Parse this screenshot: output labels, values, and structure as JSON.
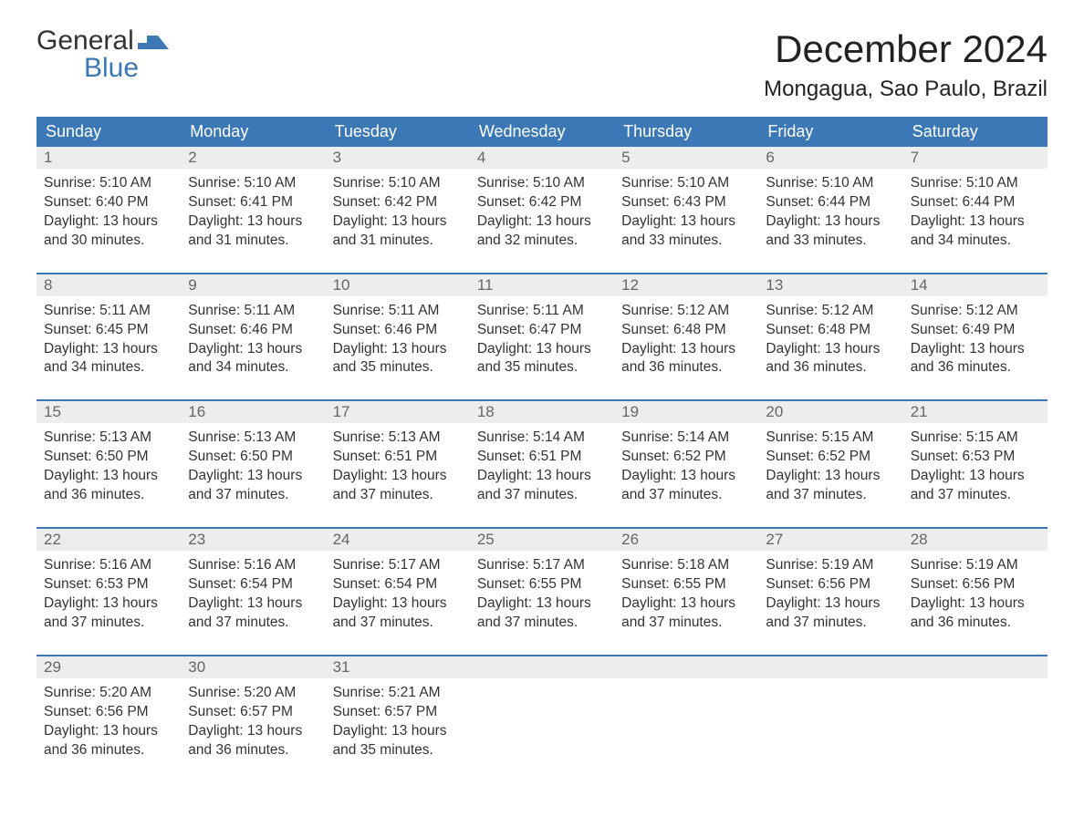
{
  "logo": {
    "word1": "General",
    "word2": "Blue",
    "brand_color": "#3b78b5",
    "text_color": "#333333"
  },
  "header": {
    "month_title": "December 2024",
    "location": "Mongagua, Sao Paulo, Brazil"
  },
  "styling": {
    "header_row_bg": "#3b78b5",
    "header_row_text": "#ffffff",
    "daynum_bg": "#ededed",
    "daynum_text": "#666666",
    "body_text": "#333333",
    "row_divider": "#3b78b5",
    "page_bg": "#ffffff",
    "day_header_fontsize": 18,
    "month_title_fontsize": 42,
    "location_fontsize": 24,
    "body_fontsize": 15.5
  },
  "calendar": {
    "day_headers": [
      "Sunday",
      "Monday",
      "Tuesday",
      "Wednesday",
      "Thursday",
      "Friday",
      "Saturday"
    ],
    "weeks": [
      [
        {
          "num": "1",
          "sunrise": "Sunrise: 5:10 AM",
          "sunset": "Sunset: 6:40 PM",
          "day1": "Daylight: 13 hours",
          "day2": "and 30 minutes."
        },
        {
          "num": "2",
          "sunrise": "Sunrise: 5:10 AM",
          "sunset": "Sunset: 6:41 PM",
          "day1": "Daylight: 13 hours",
          "day2": "and 31 minutes."
        },
        {
          "num": "3",
          "sunrise": "Sunrise: 5:10 AM",
          "sunset": "Sunset: 6:42 PM",
          "day1": "Daylight: 13 hours",
          "day2": "and 31 minutes."
        },
        {
          "num": "4",
          "sunrise": "Sunrise: 5:10 AM",
          "sunset": "Sunset: 6:42 PM",
          "day1": "Daylight: 13 hours",
          "day2": "and 32 minutes."
        },
        {
          "num": "5",
          "sunrise": "Sunrise: 5:10 AM",
          "sunset": "Sunset: 6:43 PM",
          "day1": "Daylight: 13 hours",
          "day2": "and 33 minutes."
        },
        {
          "num": "6",
          "sunrise": "Sunrise: 5:10 AM",
          "sunset": "Sunset: 6:44 PM",
          "day1": "Daylight: 13 hours",
          "day2": "and 33 minutes."
        },
        {
          "num": "7",
          "sunrise": "Sunrise: 5:10 AM",
          "sunset": "Sunset: 6:44 PM",
          "day1": "Daylight: 13 hours",
          "day2": "and 34 minutes."
        }
      ],
      [
        {
          "num": "8",
          "sunrise": "Sunrise: 5:11 AM",
          "sunset": "Sunset: 6:45 PM",
          "day1": "Daylight: 13 hours",
          "day2": "and 34 minutes."
        },
        {
          "num": "9",
          "sunrise": "Sunrise: 5:11 AM",
          "sunset": "Sunset: 6:46 PM",
          "day1": "Daylight: 13 hours",
          "day2": "and 34 minutes."
        },
        {
          "num": "10",
          "sunrise": "Sunrise: 5:11 AM",
          "sunset": "Sunset: 6:46 PM",
          "day1": "Daylight: 13 hours",
          "day2": "and 35 minutes."
        },
        {
          "num": "11",
          "sunrise": "Sunrise: 5:11 AM",
          "sunset": "Sunset: 6:47 PM",
          "day1": "Daylight: 13 hours",
          "day2": "and 35 minutes."
        },
        {
          "num": "12",
          "sunrise": "Sunrise: 5:12 AM",
          "sunset": "Sunset: 6:48 PM",
          "day1": "Daylight: 13 hours",
          "day2": "and 36 minutes."
        },
        {
          "num": "13",
          "sunrise": "Sunrise: 5:12 AM",
          "sunset": "Sunset: 6:48 PM",
          "day1": "Daylight: 13 hours",
          "day2": "and 36 minutes."
        },
        {
          "num": "14",
          "sunrise": "Sunrise: 5:12 AM",
          "sunset": "Sunset: 6:49 PM",
          "day1": "Daylight: 13 hours",
          "day2": "and 36 minutes."
        }
      ],
      [
        {
          "num": "15",
          "sunrise": "Sunrise: 5:13 AM",
          "sunset": "Sunset: 6:50 PM",
          "day1": "Daylight: 13 hours",
          "day2": "and 36 minutes."
        },
        {
          "num": "16",
          "sunrise": "Sunrise: 5:13 AM",
          "sunset": "Sunset: 6:50 PM",
          "day1": "Daylight: 13 hours",
          "day2": "and 37 minutes."
        },
        {
          "num": "17",
          "sunrise": "Sunrise: 5:13 AM",
          "sunset": "Sunset: 6:51 PM",
          "day1": "Daylight: 13 hours",
          "day2": "and 37 minutes."
        },
        {
          "num": "18",
          "sunrise": "Sunrise: 5:14 AM",
          "sunset": "Sunset: 6:51 PM",
          "day1": "Daylight: 13 hours",
          "day2": "and 37 minutes."
        },
        {
          "num": "19",
          "sunrise": "Sunrise: 5:14 AM",
          "sunset": "Sunset: 6:52 PM",
          "day1": "Daylight: 13 hours",
          "day2": "and 37 minutes."
        },
        {
          "num": "20",
          "sunrise": "Sunrise: 5:15 AM",
          "sunset": "Sunset: 6:52 PM",
          "day1": "Daylight: 13 hours",
          "day2": "and 37 minutes."
        },
        {
          "num": "21",
          "sunrise": "Sunrise: 5:15 AM",
          "sunset": "Sunset: 6:53 PM",
          "day1": "Daylight: 13 hours",
          "day2": "and 37 minutes."
        }
      ],
      [
        {
          "num": "22",
          "sunrise": "Sunrise: 5:16 AM",
          "sunset": "Sunset: 6:53 PM",
          "day1": "Daylight: 13 hours",
          "day2": "and 37 minutes."
        },
        {
          "num": "23",
          "sunrise": "Sunrise: 5:16 AM",
          "sunset": "Sunset: 6:54 PM",
          "day1": "Daylight: 13 hours",
          "day2": "and 37 minutes."
        },
        {
          "num": "24",
          "sunrise": "Sunrise: 5:17 AM",
          "sunset": "Sunset: 6:54 PM",
          "day1": "Daylight: 13 hours",
          "day2": "and 37 minutes."
        },
        {
          "num": "25",
          "sunrise": "Sunrise: 5:17 AM",
          "sunset": "Sunset: 6:55 PM",
          "day1": "Daylight: 13 hours",
          "day2": "and 37 minutes."
        },
        {
          "num": "26",
          "sunrise": "Sunrise: 5:18 AM",
          "sunset": "Sunset: 6:55 PM",
          "day1": "Daylight: 13 hours",
          "day2": "and 37 minutes."
        },
        {
          "num": "27",
          "sunrise": "Sunrise: 5:19 AM",
          "sunset": "Sunset: 6:56 PM",
          "day1": "Daylight: 13 hours",
          "day2": "and 37 minutes."
        },
        {
          "num": "28",
          "sunrise": "Sunrise: 5:19 AM",
          "sunset": "Sunset: 6:56 PM",
          "day1": "Daylight: 13 hours",
          "day2": "and 36 minutes."
        }
      ],
      [
        {
          "num": "29",
          "sunrise": "Sunrise: 5:20 AM",
          "sunset": "Sunset: 6:56 PM",
          "day1": "Daylight: 13 hours",
          "day2": "and 36 minutes."
        },
        {
          "num": "30",
          "sunrise": "Sunrise: 5:20 AM",
          "sunset": "Sunset: 6:57 PM",
          "day1": "Daylight: 13 hours",
          "day2": "and 36 minutes."
        },
        {
          "num": "31",
          "sunrise": "Sunrise: 5:21 AM",
          "sunset": "Sunset: 6:57 PM",
          "day1": "Daylight: 13 hours",
          "day2": "and 35 minutes."
        },
        null,
        null,
        null,
        null
      ]
    ]
  }
}
